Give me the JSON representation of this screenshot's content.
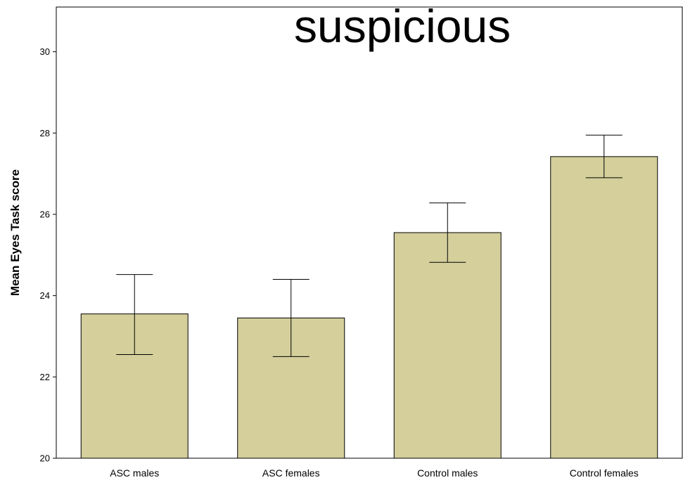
{
  "overlay_text": "suspicious",
  "chart_data": {
    "type": "bar",
    "title": "",
    "xlabel": "",
    "ylabel": "Mean Eyes Task score",
    "categories": [
      "ASC males",
      "ASC females",
      "Control males",
      "Control females"
    ],
    "values": [
      23.55,
      23.45,
      25.55,
      27.42
    ],
    "error_bars": {
      "lower": [
        22.55,
        22.5,
        24.82,
        26.9
      ],
      "upper": [
        24.52,
        24.4,
        26.28,
        27.95
      ]
    },
    "ylim": [
      20,
      31.1
    ],
    "yticks": [
      20,
      22,
      24,
      26,
      28,
      30
    ],
    "bar_color": "#d4cf9b",
    "grid": false
  }
}
